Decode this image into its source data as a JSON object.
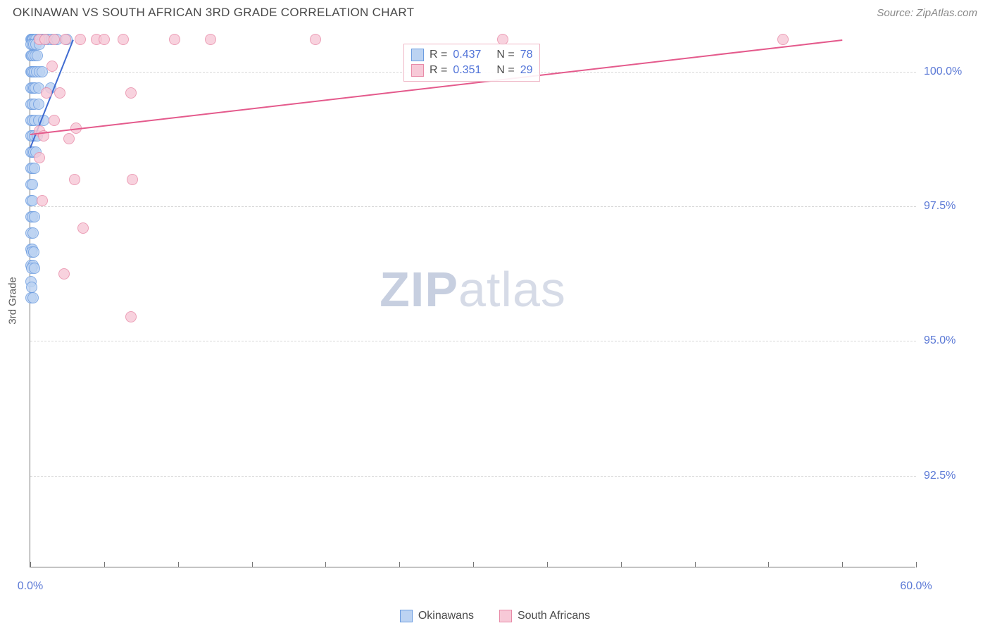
{
  "title": "OKINAWAN VS SOUTH AFRICAN 3RD GRADE CORRELATION CHART",
  "source_prefix": "Source: ",
  "source_name": "ZipAtlas.com",
  "y_axis_label": "3rd Grade",
  "watermark_bold": "ZIP",
  "watermark_light": "atlas",
  "chart": {
    "type": "scatter",
    "xlim": [
      0,
      60
    ],
    "ylim": [
      90.8,
      100.7
    ],
    "x_ticks_major": [
      0,
      10,
      20,
      30,
      40,
      50,
      60
    ],
    "x_ticks_minor": [
      5,
      15,
      25,
      35,
      45,
      55
    ],
    "x_tick_labels": [
      {
        "val": 0,
        "label": "0.0%"
      },
      {
        "val": 60,
        "label": "60.0%"
      }
    ],
    "y_ticks": [
      {
        "val": 92.5,
        "label": "92.5%"
      },
      {
        "val": 95.0,
        "label": "95.0%"
      },
      {
        "val": 97.5,
        "label": "97.5%"
      },
      {
        "val": 100.0,
        "label": "100.0%"
      }
    ],
    "grid_color": "#d7d7d7",
    "background_color": "#ffffff",
    "marker_radius": 8,
    "marker_stroke_width": 1.5,
    "series": [
      {
        "key": "okinawans",
        "label": "Okinawans",
        "fill": "#bcd3f2",
        "stroke": "#6d9de0",
        "line_color": "#3f6bd1",
        "R": "0.437",
        "N": "78",
        "trend": {
          "x1": 0.0,
          "y1": 98.6,
          "x2": 2.9,
          "y2": 100.6
        },
        "points": [
          [
            0.05,
            100.6
          ],
          [
            0.1,
            100.6
          ],
          [
            0.15,
            100.6
          ],
          [
            0.2,
            100.6
          ],
          [
            0.3,
            100.6
          ],
          [
            0.4,
            100.6
          ],
          [
            0.55,
            100.6
          ],
          [
            0.7,
            100.6
          ],
          [
            0.85,
            100.6
          ],
          [
            1.0,
            100.6
          ],
          [
            1.2,
            100.6
          ],
          [
            1.45,
            100.6
          ],
          [
            1.8,
            100.6
          ],
          [
            2.5,
            100.6
          ],
          [
            0.05,
            100.3
          ],
          [
            0.1,
            100.3
          ],
          [
            0.2,
            100.3
          ],
          [
            0.35,
            100.3
          ],
          [
            0.5,
            100.3
          ],
          [
            0.05,
            100.0
          ],
          [
            0.1,
            100.0
          ],
          [
            0.2,
            100.0
          ],
          [
            0.3,
            100.0
          ],
          [
            0.45,
            100.0
          ],
          [
            0.6,
            100.0
          ],
          [
            0.8,
            100.0
          ],
          [
            0.05,
            99.7
          ],
          [
            0.12,
            99.7
          ],
          [
            0.22,
            99.7
          ],
          [
            0.35,
            99.7
          ],
          [
            0.55,
            99.7
          ],
          [
            1.4,
            99.7
          ],
          [
            0.05,
            99.4
          ],
          [
            0.15,
            99.4
          ],
          [
            0.3,
            99.4
          ],
          [
            0.55,
            99.4
          ],
          [
            0.05,
            99.1
          ],
          [
            0.15,
            99.1
          ],
          [
            0.3,
            99.1
          ],
          [
            0.55,
            99.1
          ],
          [
            0.9,
            99.1
          ],
          [
            0.05,
            98.8
          ],
          [
            0.15,
            98.8
          ],
          [
            0.3,
            98.8
          ],
          [
            0.5,
            98.8
          ],
          [
            0.05,
            98.5
          ],
          [
            0.15,
            98.5
          ],
          [
            0.25,
            98.5
          ],
          [
            0.4,
            98.5
          ],
          [
            0.05,
            98.2
          ],
          [
            0.15,
            98.2
          ],
          [
            0.3,
            98.2
          ],
          [
            0.05,
            97.9
          ],
          [
            0.15,
            97.9
          ],
          [
            0.05,
            97.6
          ],
          [
            0.15,
            97.6
          ],
          [
            0.05,
            97.3
          ],
          [
            0.15,
            97.3
          ],
          [
            0.3,
            97.3
          ],
          [
            0.05,
            97.0
          ],
          [
            0.2,
            97.0
          ],
          [
            0.05,
            96.7
          ],
          [
            0.15,
            96.7
          ],
          [
            0.05,
            96.4
          ],
          [
            0.2,
            96.4
          ],
          [
            0.05,
            96.1
          ],
          [
            0.05,
            95.8
          ],
          [
            0.2,
            95.8
          ],
          [
            0.1,
            96.65
          ],
          [
            0.25,
            96.65
          ],
          [
            0.1,
            96.35
          ],
          [
            0.3,
            96.35
          ],
          [
            0.1,
            96.0
          ],
          [
            0.05,
            100.5
          ],
          [
            0.12,
            100.5
          ],
          [
            0.25,
            100.5
          ],
          [
            0.4,
            100.5
          ],
          [
            0.6,
            100.5
          ]
        ]
      },
      {
        "key": "south_africans",
        "label": "South Africans",
        "fill": "#f7c9d7",
        "stroke": "#e88ba8",
        "line_color": "#e45a8c",
        "R": "0.351",
        "N": "29",
        "trend": {
          "x1": 0.0,
          "y1": 98.85,
          "x2": 55.0,
          "y2": 100.6
        },
        "points": [
          [
            0.6,
            100.6
          ],
          [
            1.0,
            100.6
          ],
          [
            1.6,
            100.6
          ],
          [
            2.4,
            100.6
          ],
          [
            3.4,
            100.6
          ],
          [
            4.5,
            100.6
          ],
          [
            5.0,
            100.6
          ],
          [
            6.3,
            100.6
          ],
          [
            9.8,
            100.6
          ],
          [
            12.2,
            100.6
          ],
          [
            19.3,
            100.6
          ],
          [
            32.0,
            100.6
          ],
          [
            51.0,
            100.6
          ],
          [
            1.5,
            100.1
          ],
          [
            6.8,
            99.6
          ],
          [
            1.1,
            99.6
          ],
          [
            2.0,
            99.6
          ],
          [
            1.6,
            99.1
          ],
          [
            3.1,
            98.95
          ],
          [
            0.6,
            98.9
          ],
          [
            0.9,
            98.8
          ],
          [
            2.6,
            98.75
          ],
          [
            0.6,
            98.4
          ],
          [
            3.0,
            98.0
          ],
          [
            6.9,
            98.0
          ],
          [
            0.8,
            97.6
          ],
          [
            3.6,
            97.1
          ],
          [
            2.3,
            96.25
          ],
          [
            6.8,
            95.45
          ]
        ]
      }
    ]
  },
  "stats_box": {
    "r_label": "R =",
    "n_label": "N ="
  }
}
